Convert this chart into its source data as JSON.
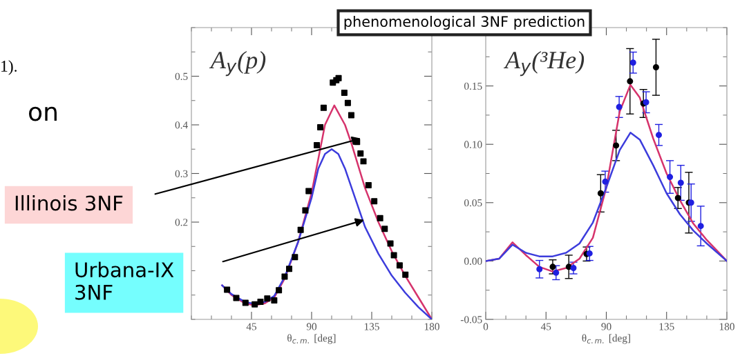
{
  "chart_data": [
    {
      "type": "scatter",
      "title": "A$_{y}$(p)",
      "xlabel": "θ$_{c.m.}$ [deg]",
      "xlim": [
        0,
        180
      ],
      "xticks": [
        45,
        90,
        135,
        180
      ],
      "ylim": [
        0,
        0.6
      ],
      "yticks": [
        0.2,
        0.3,
        0.4,
        0.5
      ],
      "grid": false,
      "legend": false,
      "series": [
        {
          "type": "line",
          "color": "#d6336c",
          "marker": "none",
          "x": [
            23,
            30,
            40,
            47,
            55,
            62,
            70,
            80,
            90,
            100,
            107,
            115,
            120,
            130,
            140,
            150,
            160,
            170,
            180
          ],
          "values": [
            0.07,
            0.05,
            0.033,
            0.029,
            0.033,
            0.045,
            0.085,
            0.16,
            0.26,
            0.4,
            0.44,
            0.4,
            0.36,
            0.27,
            0.2,
            0.14,
            0.09,
            0.045,
            0.0
          ]
        },
        {
          "type": "line",
          "color": "#3c3cdc",
          "marker": "none",
          "x": [
            23,
            30,
            40,
            47,
            55,
            62,
            70,
            80,
            90,
            95,
            100,
            105,
            110,
            115,
            120,
            130,
            140,
            150,
            160,
            170,
            180
          ],
          "values": [
            0.07,
            0.052,
            0.036,
            0.032,
            0.036,
            0.048,
            0.088,
            0.16,
            0.25,
            0.31,
            0.34,
            0.35,
            0.34,
            0.31,
            0.27,
            0.19,
            0.135,
            0.09,
            0.055,
            0.025,
            0.0
          ]
        },
        {
          "color": "#000000",
          "marker": "square",
          "x": [
            26.7,
            33.6,
            40.5,
            47.4,
            51.7,
            56.8,
            62,
            65.5,
            69.8,
            73.2,
            77.5,
            81.8,
            85.3,
            87.8,
            93.9,
            96.5,
            99,
            105.9,
            108.5,
            110.2,
            114.5,
            117.1,
            119.7,
            124,
            126.6,
            128.8,
            132.6,
            136.9,
            141.3,
            144.7,
            149,
            151.6,
            155.9,
            160.2
          ],
          "values": [
            0.061,
            0.044,
            0.034,
            0.031,
            0.036,
            0.043,
            0.039,
            0.06,
            0.088,
            0.104,
            0.128,
            0.184,
            0.224,
            0.264,
            0.358,
            0.395,
            0.435,
            0.487,
            0.492,
            0.496,
            0.466,
            0.445,
            0.42,
            0.365,
            0.341,
            0.325,
            0.276,
            0.243,
            0.208,
            0.186,
            0.156,
            0.132,
            0.111,
            0.092
          ]
        }
      ],
      "annotations": [
        "Illinois 3NF",
        "Urbana-IX\n3NF",
        "1).",
        "on"
      ]
    },
    {
      "type": "scatter",
      "title": "A$_{y}$(³He)",
      "xlabel": "θ$_{c.m.}$ [deg]",
      "xlim": [
        0,
        180
      ],
      "xticks": [
        0,
        45,
        90,
        135,
        180
      ],
      "ylim": [
        -0.05,
        0.2
      ],
      "yticks": [
        {
          "value": -0.05,
          "label": "-0.05"
        },
        {
          "value": 0,
          "label": "0.00"
        },
        {
          "value": 0.05,
          "label": "0.05"
        },
        {
          "value": 0.1,
          "label": "0.10"
        },
        0.15
      ],
      "grid": false,
      "legend": false,
      "series": [
        {
          "type": "line",
          "color": "#d6336c",
          "marker": "none",
          "x": [
            0,
            10,
            20,
            30,
            40,
            50,
            60,
            70,
            80,
            90,
            100,
            108,
            115,
            125,
            135,
            145,
            155,
            165,
            180
          ],
          "values": [
            0,
            0.002,
            0.016,
            0.005,
            -0.005,
            -0.009,
            -0.006,
            0.002,
            0.02,
            0.063,
            0.128,
            0.151,
            0.14,
            0.105,
            0.075,
            0.052,
            0.032,
            0.018,
            0
          ]
        },
        {
          "type": "line",
          "color": "#3c3cdc",
          "marker": "none",
          "x": [
            0,
            10,
            20,
            30,
            40,
            50,
            60,
            70,
            80,
            90,
            100,
            108,
            115,
            125,
            135,
            145,
            155,
            165,
            180
          ],
          "values": [
            0,
            0.002,
            0.014,
            0.007,
            0.004,
            0.004,
            0.007,
            0.015,
            0.033,
            0.063,
            0.095,
            0.11,
            0.104,
            0.082,
            0.058,
            0.04,
            0.026,
            0.015,
            0
          ]
        },
        {
          "color": "#000000",
          "marker": "circle",
          "x": [
            50,
            62,
            75.3,
            85.8,
            97.3,
            107.7,
            117.7,
            127.1,
            143.5,
            151.6
          ],
          "values": [
            -0.005,
            -0.005,
            0.006,
            0.058,
            0.099,
            0.154,
            0.135,
            0.166,
            0.054,
            0.05
          ],
          "errors": [
            0.006,
            0.01,
            0.006,
            0.016,
            0.013,
            0.028,
            0.012,
            0.024,
            0.009,
            0.026
          ]
        },
        {
          "color": "#1f1fe0",
          "marker": "circle",
          "x": [
            40.1,
            52.5,
            65.5,
            77.5,
            89.2,
            99.6,
            110,
            119.7,
            129.2,
            137.5,
            145.6,
            153.3,
            160.5
          ],
          "values": [
            -0.007,
            -0.01,
            -0.006,
            0.0065,
            0.068,
            0.132,
            0.17,
            0.136,
            0.108,
            0.072,
            0.067,
            0.05,
            0.03
          ],
          "errors": [
            0.0075,
            0.006,
            0.005,
            0.006,
            0.009,
            0.009,
            0.009,
            0.009,
            0.009,
            0.014,
            0.015,
            0.016,
            0.017
          ]
        }
      ],
      "annotations": [
        "phenomenological 3NF prediction"
      ]
    }
  ]
}
